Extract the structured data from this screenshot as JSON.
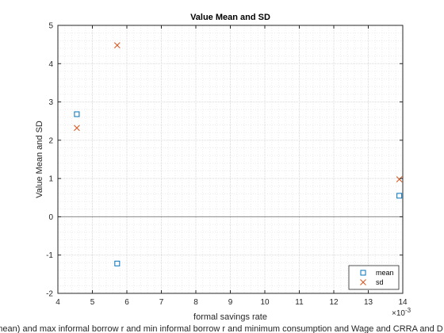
{
  "chart_data": {
    "type": "scatter",
    "title": "Value Mean and SD",
    "xlabel": "formal savings rate",
    "ylabel": "Value Mean and SD",
    "xlabel2": "mean) and max informal borrow r and min informal borrow r and minimum consumption and Wage and CRRA and D",
    "x_exponent_label": "×10",
    "x_exponent_power": "-3",
    "xlim": [
      4,
      14
    ],
    "ylim": [
      -2,
      5
    ],
    "xticks": [
      4,
      5,
      6,
      7,
      8,
      9,
      10,
      11,
      12,
      13,
      14
    ],
    "yticks": [
      -2,
      -1,
      0,
      1,
      2,
      3,
      4,
      5
    ],
    "grid": "minor-dotted",
    "zero_line": true,
    "legend_position": "bottom-right",
    "series": [
      {
        "name": "mean",
        "marker": "square",
        "color": "#0072BD",
        "x": [
          4.55,
          5.72,
          13.9
        ],
        "y": [
          2.68,
          -1.22,
          0.55
        ]
      },
      {
        "name": "sd",
        "marker": "x",
        "color": "#D95319",
        "x": [
          4.55,
          5.72,
          13.9
        ],
        "y": [
          2.32,
          4.48,
          0.98
        ]
      }
    ]
  }
}
